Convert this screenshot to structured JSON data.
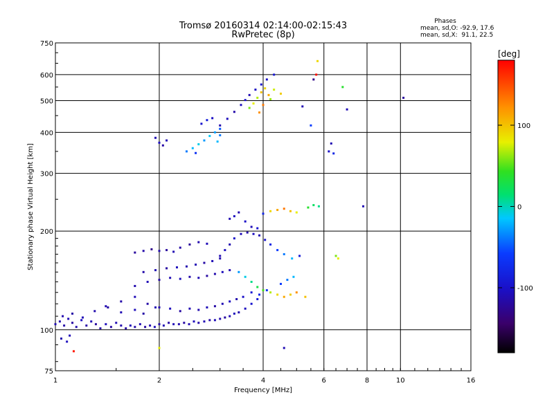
{
  "chart_data": {
    "type": "scatter",
    "title": "Tromsø 20160314 02:14:00-02:15:43",
    "subtitle": "RwPretec (8p)",
    "xlabel": "Frequency [MHz]",
    "ylabel": "Stationary phase Virtual Height [km]",
    "x_scale": "log",
    "y_scale": "log",
    "xlim": [
      1,
      16
    ],
    "ylim": [
      75,
      750
    ],
    "x_ticks": [
      1,
      2,
      4,
      6,
      8,
      10,
      16
    ],
    "y_ticks": [
      75,
      100,
      200,
      300,
      400,
      500,
      600,
      750
    ],
    "grid": true,
    "color_by": "phase",
    "colorbar": {
      "label": "[deg]",
      "ticks": [
        100,
        0,
        -100
      ],
      "range": [
        -180,
        180
      ],
      "colormap": "rainbow"
    },
    "stats": {
      "heading": "Phases",
      "o_line": "mean, sd,O: -92.9, 17.6",
      "x_line": "mean, sd,X:  91.1, 22.5"
    },
    "series": [
      {
        "points": [
          [
            1.0,
            104,
            -110
          ],
          [
            1.03,
            106,
            -112
          ],
          [
            1.06,
            103,
            -115
          ],
          [
            1.09,
            108,
            -108
          ],
          [
            1.12,
            105,
            -118
          ],
          [
            1.15,
            102,
            -112
          ],
          [
            1.19,
            107,
            -104
          ],
          [
            1.23,
            103,
            -116
          ],
          [
            1.27,
            106,
            -110
          ],
          [
            1.31,
            104,
            -120
          ],
          [
            1.35,
            101,
            -114
          ],
          [
            1.4,
            104,
            -106
          ],
          [
            1.45,
            102,
            -118
          ],
          [
            1.5,
            105,
            -110
          ],
          [
            1.55,
            103,
            -112
          ],
          [
            1.6,
            101,
            -116
          ],
          [
            1.65,
            103,
            -108
          ],
          [
            1.7,
            102,
            -114
          ],
          [
            1.76,
            104,
            -110
          ],
          [
            1.82,
            102,
            -118
          ],
          [
            1.88,
            103,
            -112
          ],
          [
            1.94,
            102,
            -106
          ],
          [
            2.0,
            104,
            -114
          ],
          [
            2.06,
            103,
            -110
          ],
          [
            2.13,
            105,
            -116
          ],
          [
            2.2,
            104,
            -108
          ],
          [
            2.28,
            104,
            -112
          ],
          [
            2.36,
            105,
            -118
          ],
          [
            2.44,
            104,
            -110
          ],
          [
            2.52,
            106,
            -106
          ],
          [
            2.6,
            105,
            -114
          ],
          [
            2.7,
            106,
            -110
          ],
          [
            2.8,
            107,
            -116
          ],
          [
            2.9,
            107,
            -108
          ],
          [
            3.0,
            108,
            -112
          ],
          [
            3.1,
            109,
            -118
          ],
          [
            3.2,
            110,
            -110
          ],
          [
            3.3,
            112,
            -106
          ],
          [
            3.4,
            113,
            -112
          ],
          [
            3.55,
            116,
            -104
          ],
          [
            3.7,
            120,
            -96
          ],
          [
            3.85,
            124,
            -90
          ]
        ]
      },
      {
        "points": [
          [
            1.05,
            110,
            -112
          ],
          [
            1.12,
            112,
            -116
          ],
          [
            1.2,
            109,
            -108
          ],
          [
            1.3,
            114,
            -112
          ],
          [
            1.42,
            117,
            -118
          ],
          [
            1.55,
            113,
            -110
          ],
          [
            1.7,
            115,
            -106
          ],
          [
            1.8,
            112,
            -116
          ],
          [
            1.95,
            117,
            -110
          ]
        ]
      },
      {
        "points": [
          [
            1.4,
            118,
            -110
          ],
          [
            1.55,
            122,
            -114
          ],
          [
            1.7,
            126,
            -108
          ],
          [
            1.85,
            120,
            -116
          ],
          [
            2.0,
            117,
            -112
          ],
          [
            2.15,
            116,
            -106
          ],
          [
            2.3,
            114,
            -118
          ],
          [
            2.45,
            116,
            -110
          ],
          [
            2.6,
            115,
            -112
          ],
          [
            2.75,
            117,
            -108
          ],
          [
            2.9,
            118,
            -116
          ],
          [
            3.05,
            120,
            -110
          ],
          [
            3.2,
            122,
            -104
          ],
          [
            3.35,
            124,
            -112
          ],
          [
            3.5,
            126,
            -100
          ],
          [
            3.7,
            130,
            -92
          ],
          [
            3.9,
            128,
            -80
          ],
          [
            4.1,
            132,
            -70
          ]
        ]
      },
      {
        "points": [
          [
            1.7,
            136,
            -112
          ],
          [
            1.85,
            140,
            -108
          ],
          [
            2.0,
            142,
            -116
          ],
          [
            2.15,
            144,
            -110
          ],
          [
            2.3,
            143,
            -106
          ],
          [
            2.45,
            145,
            -114
          ],
          [
            2.6,
            144,
            -110
          ],
          [
            2.75,
            146,
            -118
          ],
          [
            2.9,
            148,
            -112
          ],
          [
            3.05,
            150,
            -106
          ],
          [
            3.2,
            152,
            -110
          ]
        ]
      },
      {
        "points": [
          [
            1.8,
            150,
            -114
          ],
          [
            1.95,
            152,
            -110
          ],
          [
            2.1,
            154,
            -118
          ],
          [
            2.25,
            155,
            -106
          ],
          [
            2.4,
            156,
            -112
          ],
          [
            2.55,
            158,
            -110
          ],
          [
            2.7,
            160,
            -116
          ],
          [
            2.85,
            162,
            -108
          ],
          [
            3.0,
            165,
            -112
          ]
        ]
      },
      {
        "points": [
          [
            1.7,
            172,
            -120
          ],
          [
            1.8,
            174,
            -114
          ],
          [
            1.9,
            176,
            -128
          ],
          [
            2.0,
            174,
            -112
          ],
          [
            2.1,
            175,
            -120
          ],
          [
            2.2,
            173,
            -110
          ],
          [
            2.3,
            178,
            -116
          ],
          [
            2.45,
            182,
            -122
          ],
          [
            2.6,
            185,
            -112
          ],
          [
            2.75,
            183,
            -108
          ]
        ]
      },
      {
        "points": [
          [
            3.0,
            168,
            -110
          ],
          [
            3.1,
            175,
            -104
          ],
          [
            3.2,
            182,
            -112
          ],
          [
            3.3,
            190,
            -100
          ],
          [
            3.45,
            196,
            -108
          ],
          [
            3.6,
            198,
            -112
          ],
          [
            3.75,
            196,
            -104
          ],
          [
            3.9,
            194,
            -110
          ],
          [
            4.05,
            188,
            -96
          ],
          [
            4.2,
            182,
            -80
          ],
          [
            4.4,
            175,
            -60
          ],
          [
            4.6,
            170,
            -40
          ],
          [
            4.85,
            165,
            -20
          ],
          [
            5.1,
            168,
            -90
          ]
        ]
      },
      {
        "points": [
          [
            3.4,
            150,
            -30
          ],
          [
            3.55,
            145,
            -10
          ],
          [
            3.7,
            140,
            10
          ],
          [
            3.85,
            135,
            30
          ],
          [
            4.0,
            132,
            50
          ],
          [
            4.2,
            130,
            70
          ],
          [
            4.4,
            128,
            90
          ],
          [
            4.6,
            126,
            110
          ],
          [
            4.8,
            128,
            95
          ],
          [
            5.0,
            130,
            120
          ],
          [
            5.3,
            126,
            100
          ],
          [
            4.5,
            138,
            -60
          ],
          [
            4.7,
            142,
            -40
          ],
          [
            4.9,
            145,
            -20
          ]
        ]
      },
      {
        "points": [
          [
            3.2,
            218,
            -110
          ],
          [
            3.3,
            222,
            -104
          ],
          [
            3.4,
            228,
            -112
          ],
          [
            3.55,
            214,
            -100
          ],
          [
            3.7,
            206,
            -108
          ],
          [
            3.85,
            204,
            -96
          ],
          [
            4.0,
            226,
            -80
          ],
          [
            4.2,
            230,
            90
          ],
          [
            4.4,
            232,
            110
          ],
          [
            4.6,
            234,
            130
          ],
          [
            4.8,
            230,
            100
          ],
          [
            5.0,
            228,
            80
          ],
          [
            5.4,
            236,
            40
          ],
          [
            5.6,
            240,
            20
          ],
          [
            5.8,
            238,
            10
          ]
        ]
      },
      {
        "points": [
          [
            1.95,
            385,
            -110
          ],
          [
            2.0,
            372,
            -104
          ],
          [
            2.05,
            365,
            -116
          ],
          [
            2.1,
            378,
            -108
          ],
          [
            2.4,
            350,
            -40
          ],
          [
            2.5,
            358,
            -20
          ],
          [
            2.6,
            368,
            -10
          ],
          [
            2.7,
            378,
            -30
          ],
          [
            2.8,
            390,
            -14
          ],
          [
            2.9,
            400,
            -28
          ],
          [
            3.0,
            410,
            -50
          ],
          [
            2.65,
            425,
            -96
          ],
          [
            2.75,
            436,
            -88
          ],
          [
            2.85,
            442,
            -102
          ],
          [
            2.55,
            346,
            -70
          ],
          [
            2.95,
            375,
            -20
          ],
          [
            3.0,
            392,
            -40
          ]
        ]
      },
      {
        "points": [
          [
            3.0,
            420,
            -112
          ],
          [
            3.15,
            440,
            -106
          ],
          [
            3.3,
            462,
            -114
          ],
          [
            3.45,
            485,
            -104
          ],
          [
            3.55,
            502,
            -98
          ],
          [
            3.65,
            520,
            -110
          ],
          [
            3.8,
            540,
            -102
          ],
          [
            3.95,
            560,
            -96
          ],
          [
            4.1,
            580,
            -100
          ],
          [
            4.3,
            600,
            -94
          ]
        ]
      },
      {
        "points": [
          [
            3.65,
            475,
            60
          ],
          [
            3.75,
            490,
            80
          ],
          [
            3.85,
            510,
            70
          ],
          [
            3.95,
            530,
            100
          ],
          [
            4.05,
            545,
            90
          ],
          [
            4.15,
            520,
            110
          ],
          [
            4.3,
            540,
            75
          ],
          [
            4.5,
            525,
            95
          ],
          [
            3.9,
            460,
            120
          ],
          [
            4.0,
            485,
            130
          ],
          [
            4.2,
            505,
            65
          ]
        ]
      },
      {
        "points": [
          [
            5.2,
            480,
            -110
          ],
          [
            5.5,
            420,
            -60
          ],
          [
            5.6,
            580,
            -130
          ],
          [
            5.7,
            600,
            175
          ],
          [
            5.75,
            660,
            90
          ],
          [
            6.2,
            350,
            -100
          ],
          [
            6.3,
            370,
            -110
          ],
          [
            6.4,
            345,
            -80
          ],
          [
            6.8,
            550,
            40
          ],
          [
            7.0,
            470,
            -108
          ],
          [
            7.8,
            238,
            -110
          ],
          [
            10.2,
            510,
            -120
          ],
          [
            4.6,
            88,
            -110
          ],
          [
            2.0,
            88,
            80
          ],
          [
            1.1,
            96,
            -108
          ],
          [
            1.04,
            94,
            -112
          ],
          [
            1.08,
            92,
            -104
          ],
          [
            1.13,
            86,
            170
          ],
          [
            6.5,
            168,
            60
          ],
          [
            6.6,
            165,
            80
          ]
        ]
      }
    ]
  }
}
